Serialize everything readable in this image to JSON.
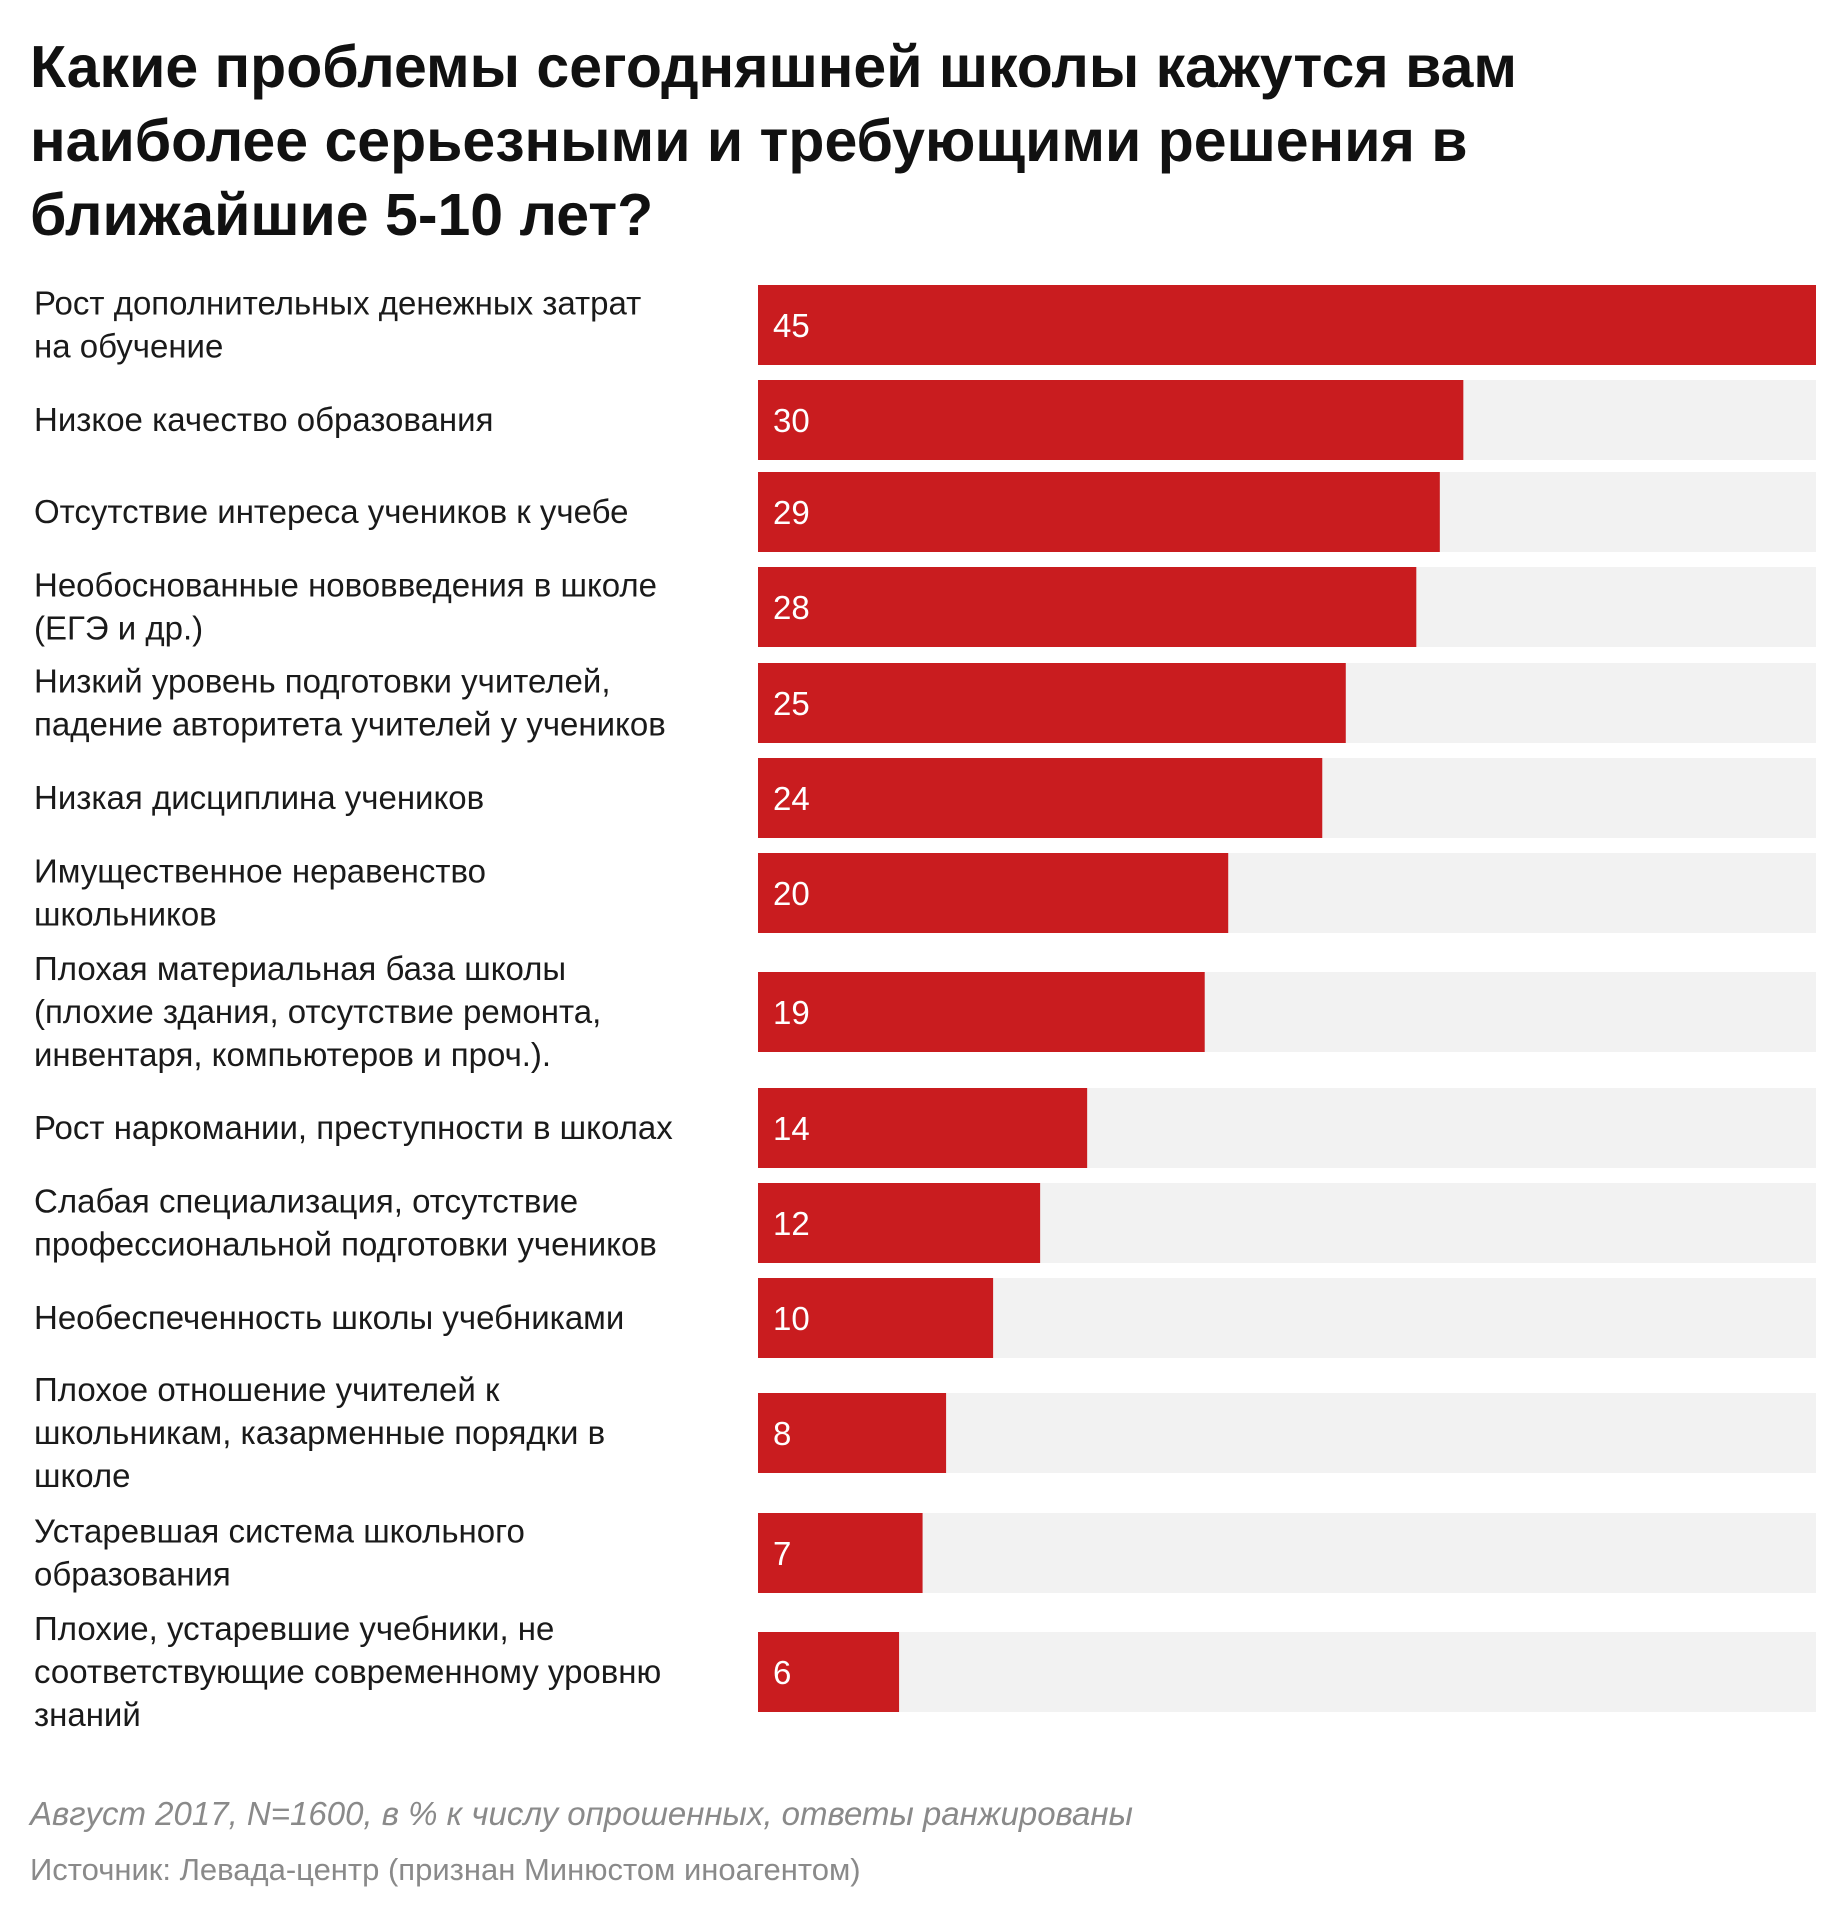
{
  "title": "Какие проблемы сегодняшней школы кажутся вам наиболее серьезными и требующими решения в ближайшие 5-10 лет?",
  "footer": {
    "note": "Август 2017, N=1600, в % к числу опрошенных, ответы ранжированы",
    "source": "Источник: Левада-центр (признан Минюстом иноагентом)"
  },
  "colors": {
    "bar": "#c91c1f",
    "track": "#f2f2f2",
    "label": "#1a1a1a",
    "value": "#ffffff"
  },
  "chart_data": {
    "type": "bar",
    "orientation": "horizontal",
    "xlim": [
      0,
      45
    ],
    "categories": [
      [
        "Рост дополнительных денежных затрат",
        "на обучение"
      ],
      [
        "Низкое качество образования"
      ],
      [
        "Отсутствие интереса учеников к учебе"
      ],
      [
        "Необоснованные нововведения в школе",
        "(ЕГЭ и др.)"
      ],
      [
        "Низкий уровень подготовки учителей,",
        "падение авторитета учителей у учеников"
      ],
      [
        "Низкая дисциплина учеников"
      ],
      [
        "Имущественное неравенство",
        "школьников"
      ],
      [
        "Плохая материальная база школы",
        "(плохие здания, отсутствие ремонта,",
        "инвентаря, компьютеров и проч.)."
      ],
      [
        "Рост наркомании, преступности в школах"
      ],
      [
        "Слабая специализация, отсутствие",
        "профессиональной подготовки учеников"
      ],
      [
        "Необеспеченность школы учебниками"
      ],
      [
        "Плохое отношение учителей к",
        "школьникам, казарменные порядки в",
        "школе"
      ],
      [
        "Устаревшая система школьного",
        "образования"
      ],
      [
        "Плохие, устаревшие учебники, не",
        "соответствующие современному уровню",
        "знаний"
      ]
    ],
    "values": [
      45,
      30,
      29,
      28,
      25,
      24,
      20,
      19,
      14,
      12,
      10,
      8,
      7,
      6
    ],
    "data_labels": [
      "45",
      "30",
      "29",
      "28",
      "25",
      "24",
      "20",
      "19",
      "14",
      "12",
      "10",
      "8",
      "7",
      "6"
    ]
  }
}
